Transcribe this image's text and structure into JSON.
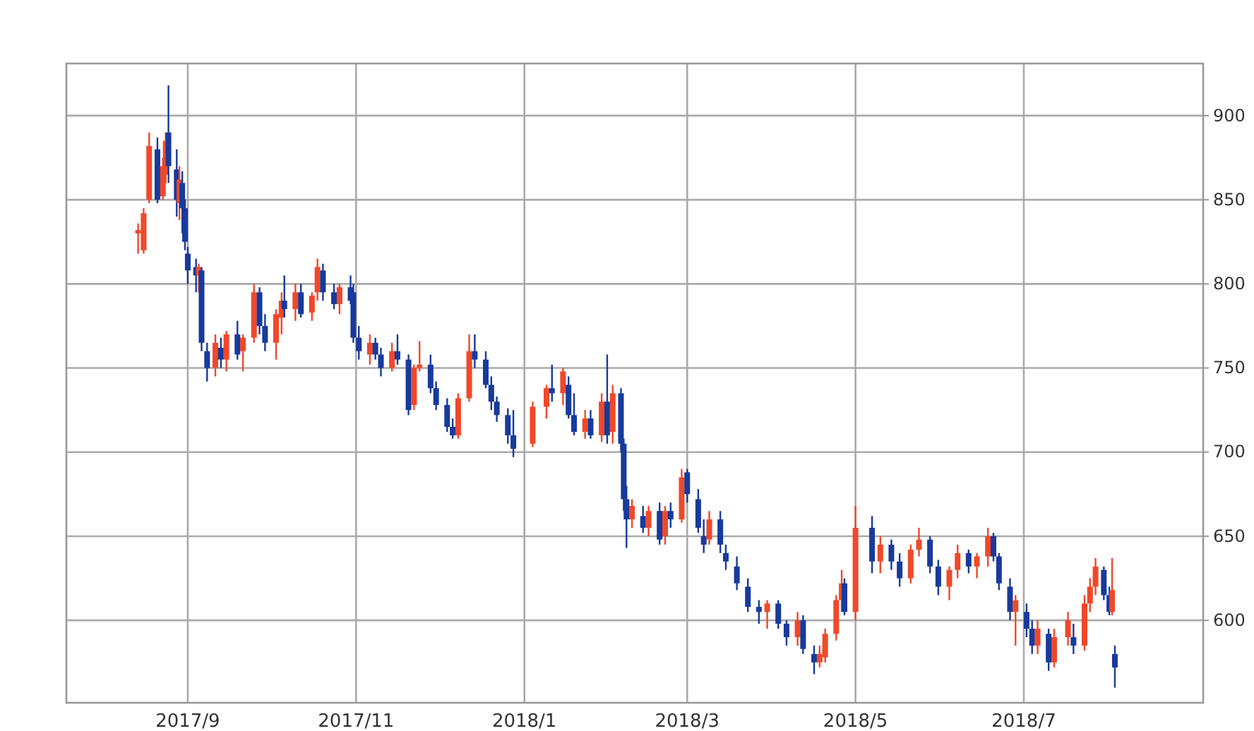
{
  "chart_data": {
    "type": "candlestick",
    "xlim": [
      "2017-07-19",
      "2018-09-04"
    ],
    "ylim": [
      551,
      931
    ],
    "yticks": [
      600,
      650,
      700,
      750,
      800,
      850,
      900
    ],
    "xticks": [
      {
        "value": "2017-09-01",
        "label": "2017/9"
      },
      {
        "value": "2017-11-01",
        "label": "2017/11"
      },
      {
        "value": "2018-01-01",
        "label": "2018/1"
      },
      {
        "value": "2018-03-01",
        "label": "2018/3"
      },
      {
        "value": "2018-05-01",
        "label": "2018/5"
      },
      {
        "value": "2018-07-01",
        "label": "2018/7"
      }
    ],
    "grid": true,
    "x": [
      "2017-08-14",
      "2017-08-16",
      "2017-08-18",
      "2017-08-21",
      "2017-08-23",
      "2017-08-24",
      "2017-08-25",
      "2017-08-28",
      "2017-08-29",
      "2017-08-30",
      "2017-08-31",
      "2017-09-01",
      "2017-09-04",
      "2017-09-05",
      "2017-09-06",
      "2017-09-08",
      "2017-09-11",
      "2017-09-13",
      "2017-09-15",
      "2017-09-19",
      "2017-09-21",
      "2017-09-25",
      "2017-09-27",
      "2017-09-29",
      "2017-10-03",
      "2017-10-05",
      "2017-10-06",
      "2017-10-10",
      "2017-10-12",
      "2017-10-16",
      "2017-10-18",
      "2017-10-20",
      "2017-10-24",
      "2017-10-26",
      "2017-10-30",
      "2017-10-31",
      "2017-11-02",
      "2017-11-06",
      "2017-11-08",
      "2017-11-10",
      "2017-11-14",
      "2017-11-16",
      "2017-11-20",
      "2017-11-22",
      "2017-11-24",
      "2017-11-28",
      "2017-11-30",
      "2017-12-04",
      "2017-12-06",
      "2017-12-08",
      "2017-12-12",
      "2017-12-14",
      "2017-12-18",
      "2017-12-20",
      "2017-12-22",
      "2017-12-26",
      "2017-12-28",
      "2018-01-04",
      "2018-01-09",
      "2018-01-11",
      "2018-01-15",
      "2018-01-17",
      "2018-01-19",
      "2018-01-23",
      "2018-01-25",
      "2018-01-29",
      "2018-01-31",
      "2018-02-02",
      "2018-02-05",
      "2018-02-06",
      "2018-02-07",
      "2018-02-09",
      "2018-02-13",
      "2018-02-15",
      "2018-02-19",
      "2018-02-21",
      "2018-02-23",
      "2018-02-27",
      "2018-03-01",
      "2018-03-05",
      "2018-03-07",
      "2018-03-09",
      "2018-03-13",
      "2018-03-15",
      "2018-03-19",
      "2018-03-23",
      "2018-03-27",
      "2018-03-30",
      "2018-04-03",
      "2018-04-06",
      "2018-04-10",
      "2018-04-12",
      "2018-04-16",
      "2018-04-18",
      "2018-04-20",
      "2018-04-24",
      "2018-04-26",
      "2018-04-27",
      "2018-05-01",
      "2018-05-07",
      "2018-05-10",
      "2018-05-14",
      "2018-05-17",
      "2018-05-21",
      "2018-05-24",
      "2018-05-28",
      "2018-05-31",
      "2018-06-04",
      "2018-06-07",
      "2018-06-11",
      "2018-06-14",
      "2018-06-18",
      "2018-06-20",
      "2018-06-22",
      "2018-06-26",
      "2018-06-28",
      "2018-07-02",
      "2018-07-04",
      "2018-07-06",
      "2018-07-10",
      "2018-07-12",
      "2018-07-17",
      "2018-07-19",
      "2018-07-23",
      "2018-07-25",
      "2018-07-27",
      "2018-07-30",
      "2018-08-01",
      "2018-08-02",
      "2018-08-03"
    ],
    "ohlc": [
      [
        830,
        836,
        818,
        832
      ],
      [
        820,
        845,
        818,
        842
      ],
      [
        850,
        890,
        848,
        882
      ],
      [
        880,
        887,
        848,
        850
      ],
      [
        852,
        875,
        850,
        870
      ],
      [
        865,
        890,
        860,
        885
      ],
      [
        890,
        918,
        860,
        870
      ],
      [
        868,
        880,
        840,
        850
      ],
      [
        848,
        870,
        838,
        862
      ],
      [
        860,
        867,
        830,
        845
      ],
      [
        845,
        850,
        820,
        825
      ],
      [
        818,
        822,
        800,
        808
      ],
      [
        810,
        815,
        795,
        805
      ],
      [
        805,
        812,
        795,
        810
      ],
      [
        808,
        810,
        760,
        765
      ],
      [
        760,
        765,
        742,
        750
      ],
      [
        750,
        770,
        745,
        765
      ],
      [
        762,
        768,
        750,
        755
      ],
      [
        755,
        772,
        748,
        770
      ],
      [
        770,
        778,
        755,
        758
      ],
      [
        760,
        770,
        748,
        768
      ],
      [
        768,
        800,
        765,
        795
      ],
      [
        795,
        798,
        770,
        775
      ],
      [
        775,
        782,
        760,
        765
      ],
      [
        765,
        785,
        755,
        782
      ],
      [
        780,
        795,
        770,
        790
      ],
      [
        790,
        805,
        780,
        785
      ],
      [
        785,
        800,
        778,
        795
      ],
      [
        795,
        800,
        780,
        782
      ],
      [
        783,
        795,
        778,
        793
      ],
      [
        795,
        815,
        790,
        810
      ],
      [
        808,
        812,
        790,
        795
      ],
      [
        795,
        800,
        785,
        788
      ],
      [
        788,
        800,
        782,
        798
      ],
      [
        798,
        805,
        788,
        790
      ],
      [
        795,
        800,
        765,
        768
      ],
      [
        768,
        775,
        755,
        760
      ],
      [
        758,
        770,
        752,
        765
      ],
      [
        765,
        768,
        755,
        758
      ],
      [
        758,
        762,
        745,
        750
      ],
      [
        750,
        765,
        748,
        760
      ],
      [
        760,
        770,
        752,
        755
      ],
      [
        755,
        758,
        722,
        725
      ],
      [
        728,
        752,
        725,
        750
      ],
      [
        750,
        766,
        748,
        752
      ],
      [
        752,
        758,
        735,
        738
      ],
      [
        738,
        742,
        725,
        728
      ],
      [
        728,
        732,
        712,
        715
      ],
      [
        715,
        720,
        708,
        710
      ],
      [
        710,
        735,
        708,
        732
      ],
      [
        732,
        770,
        730,
        760
      ],
      [
        760,
        770,
        750,
        755
      ],
      [
        755,
        760,
        738,
        740
      ],
      [
        740,
        745,
        725,
        730
      ],
      [
        730,
        733,
        718,
        722
      ],
      [
        722,
        726,
        705,
        710
      ],
      [
        710,
        725,
        697,
        702
      ],
      [
        705,
        730,
        703,
        727
      ],
      [
        727,
        740,
        720,
        738
      ],
      [
        738,
        752,
        730,
        735
      ],
      [
        735,
        750,
        728,
        748
      ],
      [
        740,
        745,
        720,
        722
      ],
      [
        722,
        735,
        710,
        712
      ],
      [
        712,
        725,
        708,
        720
      ],
      [
        720,
        725,
        708,
        710
      ],
      [
        710,
        735,
        706,
        730
      ],
      [
        730,
        758,
        705,
        710
      ],
      [
        712,
        740,
        705,
        735
      ],
      [
        735,
        738,
        700,
        705
      ],
      [
        705,
        708,
        665,
        672
      ],
      [
        672,
        680,
        643,
        660
      ],
      [
        660,
        672,
        655,
        668
      ],
      [
        662,
        668,
        652,
        655
      ],
      [
        655,
        668,
        650,
        665
      ],
      [
        665,
        670,
        645,
        648
      ],
      [
        650,
        668,
        645,
        665
      ],
      [
        665,
        670,
        655,
        660
      ],
      [
        660,
        690,
        658,
        685
      ],
      [
        688,
        690,
        670,
        675
      ],
      [
        672,
        678,
        652,
        655
      ],
      [
        650,
        660,
        640,
        645
      ],
      [
        648,
        665,
        645,
        660
      ],
      [
        660,
        665,
        640,
        645
      ],
      [
        640,
        645,
        630,
        635
      ],
      [
        632,
        638,
        618,
        622
      ],
      [
        620,
        625,
        605,
        608
      ],
      [
        608,
        612,
        598,
        605
      ],
      [
        605,
        612,
        595,
        610
      ],
      [
        610,
        612,
        595,
        598
      ],
      [
        598,
        600,
        585,
        590
      ],
      [
        590,
        605,
        585,
        600
      ],
      [
        600,
        603,
        580,
        583
      ],
      [
        580,
        585,
        568,
        575
      ],
      [
        575,
        585,
        572,
        580
      ],
      [
        578,
        595,
        575,
        592
      ],
      [
        592,
        615,
        588,
        612
      ],
      [
        612,
        630,
        605,
        622
      ],
      [
        622,
        625,
        603,
        605
      ],
      [
        605,
        668,
        600,
        655
      ],
      [
        655,
        662,
        628,
        635
      ],
      [
        635,
        650,
        628,
        645
      ],
      [
        645,
        648,
        630,
        635
      ],
      [
        635,
        640,
        620,
        625
      ],
      [
        625,
        645,
        622,
        642
      ],
      [
        642,
        655,
        638,
        648
      ],
      [
        648,
        650,
        628,
        632
      ],
      [
        632,
        636,
        615,
        620
      ],
      [
        620,
        632,
        612,
        630
      ],
      [
        630,
        645,
        625,
        640
      ],
      [
        640,
        642,
        628,
        632
      ],
      [
        632,
        640,
        625,
        638
      ],
      [
        638,
        655,
        632,
        650
      ],
      [
        650,
        652,
        635,
        638
      ],
      [
        638,
        640,
        618,
        622
      ],
      [
        620,
        625,
        600,
        605
      ],
      [
        605,
        615,
        585,
        612
      ],
      [
        605,
        610,
        590,
        595
      ],
      [
        595,
        600,
        580,
        585
      ],
      [
        585,
        600,
        580,
        595
      ],
      [
        592,
        595,
        570,
        575
      ],
      [
        575,
        595,
        572,
        590
      ],
      [
        590,
        605,
        585,
        600
      ],
      [
        590,
        598,
        580,
        585
      ],
      [
        585,
        615,
        582,
        610
      ],
      [
        610,
        625,
        605,
        620
      ],
      [
        620,
        637,
        615,
        632
      ],
      [
        630,
        632,
        612,
        615
      ],
      [
        615,
        620,
        603,
        605
      ],
      [
        605,
        637,
        603,
        618
      ],
      [
        580,
        585,
        560,
        572
      ]
    ]
  }
}
